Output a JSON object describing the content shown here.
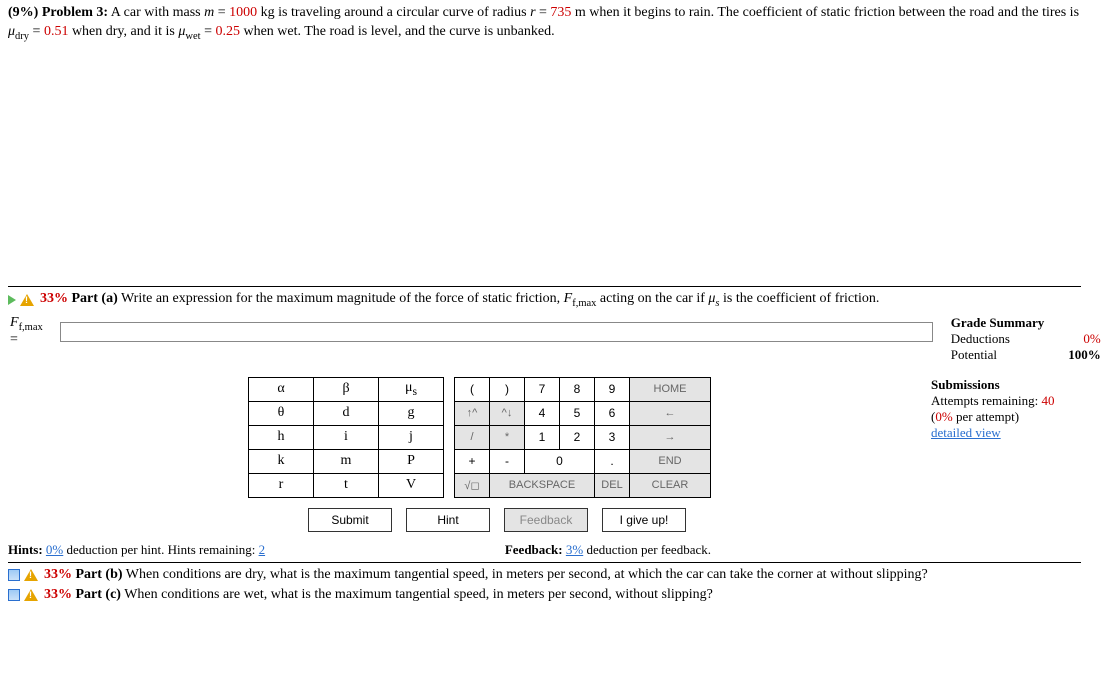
{
  "problem": {
    "weight": "(9%)",
    "label": "Problem 3:",
    "text_parts": [
      "A car with mass ",
      {
        "it": "m"
      },
      " = ",
      {
        "red": "1000"
      },
      " kg is traveling around a circular curve of radius ",
      {
        "it": "r"
      },
      " = ",
      {
        "red": "735"
      },
      " m when it begins to rain. The coefficient of static friction between the road and the tires is ",
      {
        "it": "μ"
      },
      {
        "sub": "dry"
      },
      " = ",
      {
        "red": "0.51"
      },
      " when dry, and it is ",
      {
        "it": "μ"
      },
      {
        "sub": "wet"
      },
      " = ",
      {
        "red": "0.25"
      },
      " when wet. The road is level, and the curve is unbanked."
    ]
  },
  "part_a": {
    "weight": "33%",
    "label": "Part (a)",
    "text": "Write an expression for the maximum magnitude of the force of static friction, ",
    "var_html": "F<sub>f,max</sub>",
    "text2": " acting on the car if ",
    "mu_html": "μ<sub>s</sub>",
    "text3": " is the coefficient of friction."
  },
  "answer": {
    "lhs": "F",
    "lhs_sub": "f,max",
    "eq": " = "
  },
  "grade": {
    "title": "Grade Summary",
    "rows": [
      {
        "label": "Deductions",
        "value": "0%",
        "value_class": "red"
      },
      {
        "label": "Potential",
        "value": "100%",
        "value_class": "bold"
      }
    ]
  },
  "subs": {
    "title": "Submissions",
    "attempts_label": "Attempts remaining: ",
    "attempts_value": "40",
    "per": "(0% per attempt)",
    "detailed": "detailed view"
  },
  "pad_sym": [
    [
      "α",
      "β",
      "μ<sub>s</sub>"
    ],
    [
      "θ",
      "d",
      "g"
    ],
    [
      "h",
      "i",
      "j"
    ],
    [
      "k",
      "m",
      "P"
    ],
    [
      "r",
      "t",
      "V"
    ]
  ],
  "pad_num": {
    "r1": {
      "a": "(",
      "b": ")",
      "c": "7",
      "d": "8",
      "e": "9",
      "home": "HOME"
    },
    "r2": {
      "a": "↑^",
      "b": "^↓",
      "c": "4",
      "d": "5",
      "e": "6",
      "home": "←"
    },
    "r3": {
      "a": "/",
      "b": "*",
      "c": "1",
      "d": "2",
      "e": "3",
      "home": "→"
    },
    "r4": {
      "a": "+",
      "b": "-",
      "c": "0",
      "d": ".",
      "home": "END"
    },
    "r5": {
      "a": "√◻",
      "b": "BACKSPACE",
      "c": "DEL",
      "d": "CLEAR"
    }
  },
  "buttons": {
    "submit": "Submit",
    "hint": "Hint",
    "feedback": "Feedback",
    "giveup": "I give up!"
  },
  "hints": {
    "left_a": "Hints: ",
    "left_b": "0%",
    "left_c": " deduction per hint. Hints remaining: ",
    "left_d": "2",
    "right_a": "Feedback: ",
    "right_b": "3%",
    "right_c": " deduction per feedback."
  },
  "part_b": {
    "weight": "33%",
    "label": "Part (b)",
    "text": "When conditions are dry, what is the maximum tangential speed, in meters per second, at which the car can take the corner at without slipping?"
  },
  "part_c": {
    "weight": "33%",
    "label": "Part (c)",
    "text": "When conditions are wet, what is the maximum tangential speed, in meters per second, without slipping?"
  }
}
